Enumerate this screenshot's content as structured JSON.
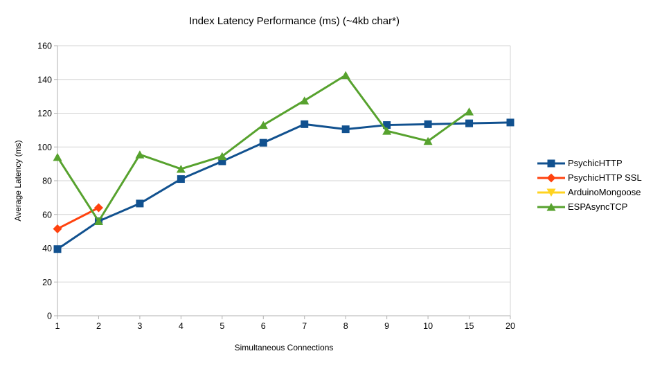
{
  "chart_data": {
    "type": "line",
    "title": "Index Latency Performance (ms) (~4kb char*)",
    "xlabel": "Simultaneous Connections",
    "ylabel": "Average Latency (ms)",
    "categories": [
      "1",
      "2",
      "3",
      "4",
      "5",
      "6",
      "7",
      "8",
      "9",
      "10",
      "15",
      "20"
    ],
    "ylim": [
      0,
      160
    ],
    "ytick_step": 20,
    "grid": "horizontal",
    "legend_position": "right",
    "series": [
      {
        "name": "PsychicHTTP",
        "color": "#11518F",
        "marker": "square",
        "values": [
          39.5,
          56,
          66.5,
          81,
          91.5,
          102.5,
          113.5,
          110.5,
          113,
          113.5,
          114,
          114.5
        ]
      },
      {
        "name": "PsychicHTTP SSL",
        "color": "#FF420E",
        "marker": "diamond",
        "values": [
          51.5,
          64,
          null,
          null,
          null,
          null,
          null,
          null,
          null,
          null,
          null,
          null
        ]
      },
      {
        "name": "ArduinoMongoose",
        "color": "#FFD320",
        "marker": "triangle-down",
        "values": [
          null,
          null,
          null,
          null,
          null,
          null,
          null,
          null,
          null,
          null,
          null,
          null
        ]
      },
      {
        "name": "ESPAsyncTCP",
        "color": "#57A22E",
        "marker": "triangle-up",
        "values": [
          94,
          56,
          95.5,
          87,
          94.5,
          113,
          127.5,
          142.5,
          109.5,
          103.5,
          121,
          null
        ]
      }
    ],
    "style": {
      "grid_color": "#d3d3d3",
      "axis_color": "#b0b0b0",
      "text_color": "#000000",
      "background": "#ffffff"
    }
  }
}
